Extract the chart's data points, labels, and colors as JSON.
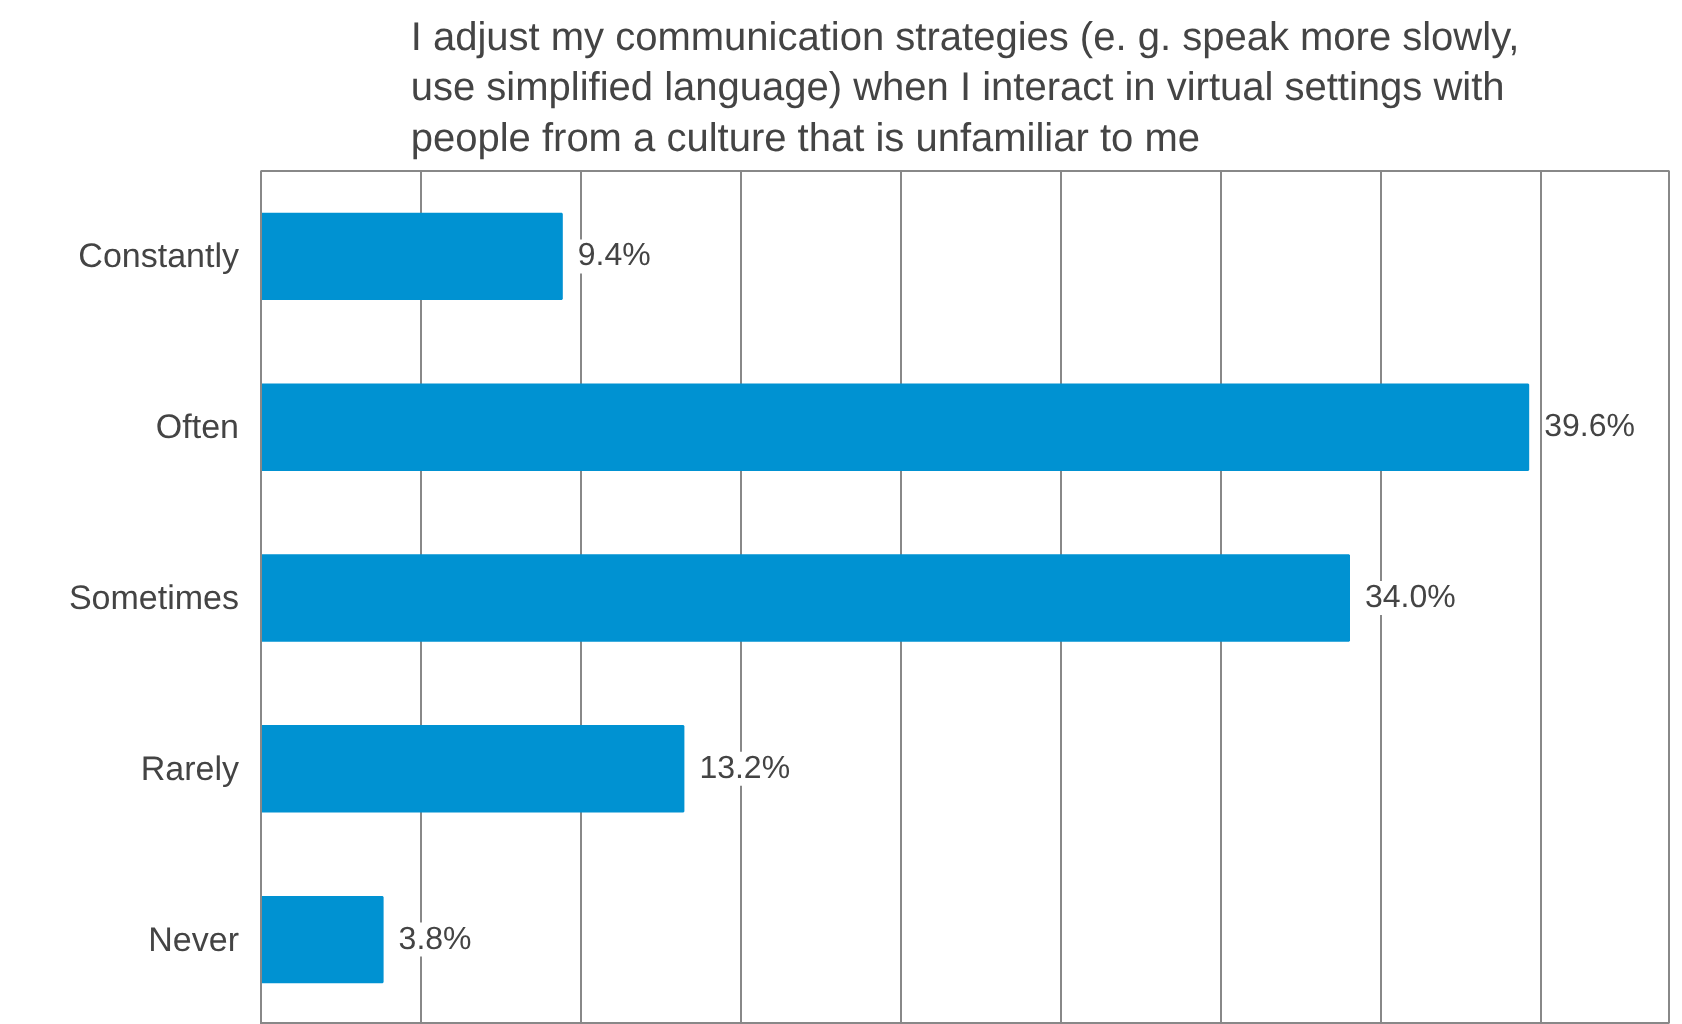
{
  "chart_data": {
    "type": "bar",
    "orientation": "horizontal",
    "title": "I adjust my communication strategies (e. g. speak more slowly, use simplified language) when I interact in virtual settings with people from a culture that is unfamiliar to me",
    "categories": [
      "Constantly",
      "Often",
      "Sometimes",
      "Rarely",
      "Never"
    ],
    "values": [
      9.4,
      39.6,
      34.0,
      13.2,
      3.8
    ],
    "value_labels": [
      "9.4%",
      "39.6%",
      "34.0%",
      "13.2%",
      "3.8%"
    ],
    "color": "#0092d2",
    "xlim": [
      0,
      44
    ],
    "xticks": [
      {
        "value": 0,
        "label": null
      },
      {
        "value": 5,
        "label": null
      },
      {
        "value": 10,
        "label": null
      },
      {
        "value": 15,
        "label": null
      },
      {
        "value": 20,
        "label": null
      },
      {
        "value": 25,
        "label": null
      },
      {
        "value": 30,
        "label": null
      },
      {
        "value": 35,
        "label": null
      },
      {
        "value": 40,
        "label": null
      }
    ],
    "grid": "x",
    "tick_labels": "y"
  }
}
